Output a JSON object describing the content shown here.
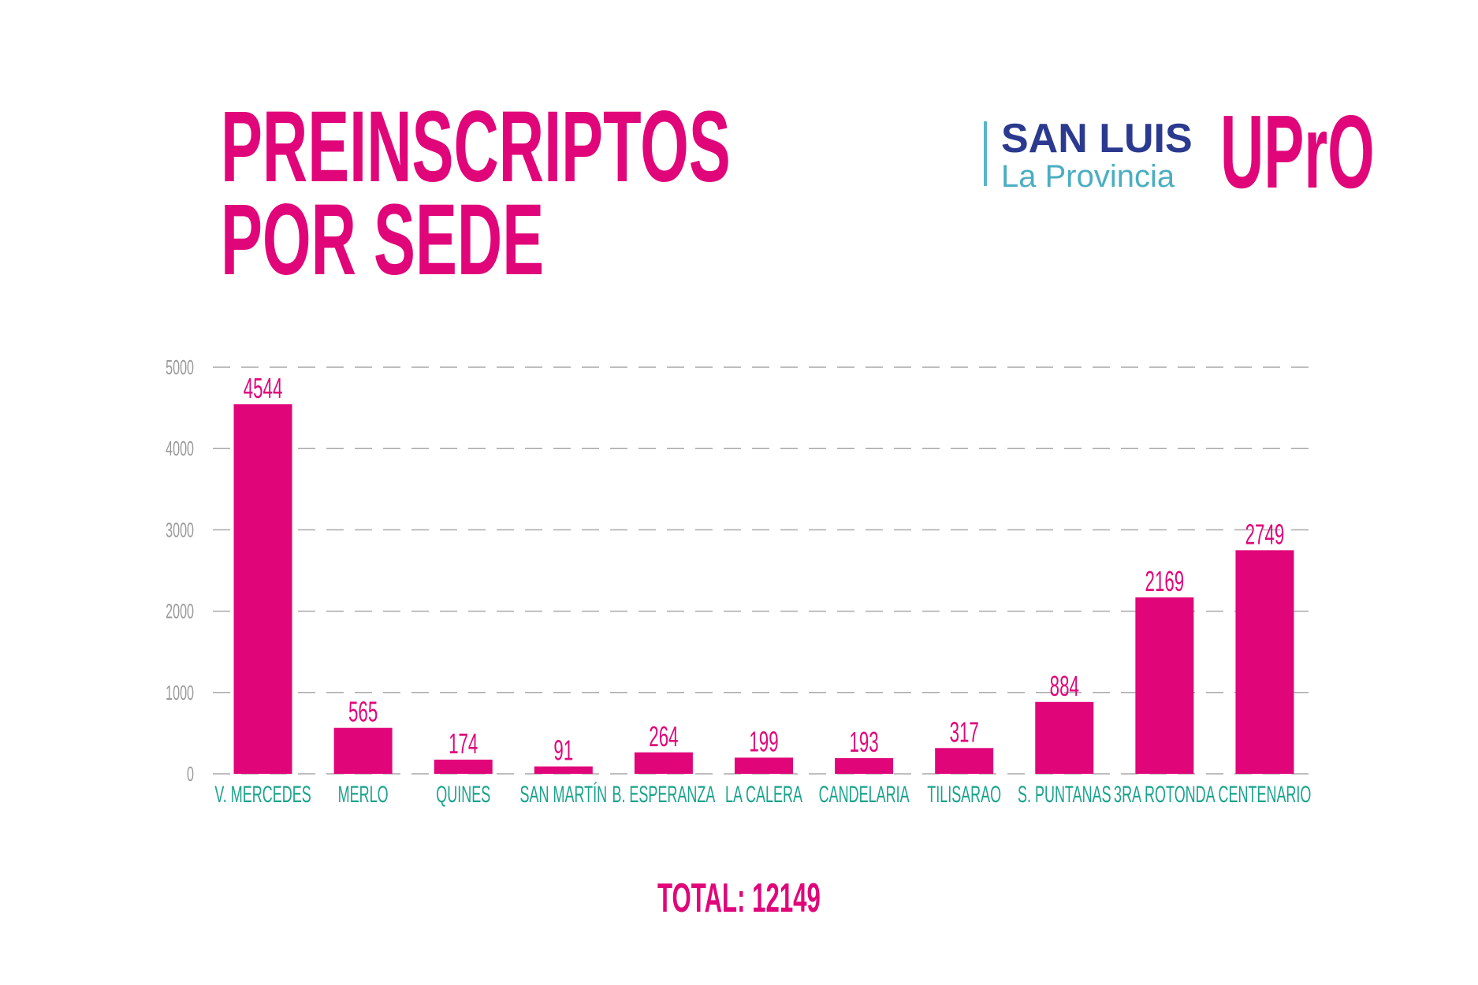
{
  "title": {
    "line1": "PREINSCRIPTOS",
    "line2": "POR SEDE"
  },
  "brand": {
    "main": "SAN LUIS",
    "sub": "La Provincia"
  },
  "logo": "UPrO",
  "total": "TOTAL: 12149",
  "colors": {
    "bar": "#e0067a",
    "category_label": "#1aa38c",
    "axis_label": "#9a9a9a",
    "grid": "#a9a9a9"
  },
  "chart_data": {
    "type": "bar",
    "title": "PREINSCRIPTOS POR SEDE",
    "categories": [
      "V. MERCEDES",
      "MERLO",
      "QUINES",
      "SAN MARTÍN",
      "B. ESPERANZA",
      "LA CALERA",
      "CANDELARIA",
      "TILISARAO",
      "S. PUNTANAS",
      "3RA ROTONDA",
      "CENTENARIO"
    ],
    "values": [
      4544,
      565,
      174,
      91,
      264,
      199,
      193,
      317,
      884,
      2169,
      2749
    ],
    "data_labels": [
      "4544",
      "565",
      "174",
      "91",
      "264",
      "199",
      "193",
      "317",
      "884",
      "2169",
      "2749"
    ],
    "ylim": [
      0,
      5000
    ],
    "yticks": [
      0,
      1000,
      2000,
      3000,
      4000,
      5000
    ],
    "ytick_labels": [
      "0",
      "1000",
      "2000",
      "3000",
      "4000",
      "5000"
    ],
    "grid": true,
    "grid_style": "dashed",
    "xlabel": "",
    "ylabel": ""
  }
}
